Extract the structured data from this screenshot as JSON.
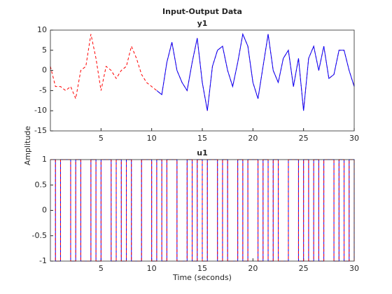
{
  "chart_data": [
    {
      "type": "line",
      "title": "Input-Output Data",
      "subtitle": "y1",
      "y_label": "Amplitude",
      "x": [
        0,
        0.5,
        1,
        1.5,
        2,
        2.5,
        3,
        3.5,
        4,
        4.5,
        5,
        5.5,
        6,
        6.5,
        7,
        7.5,
        8,
        8.5,
        9,
        9.5,
        10,
        10.5,
        11,
        11.5,
        12,
        12.5,
        13,
        13.5,
        14,
        14.5,
        15,
        15.5,
        16,
        16.5,
        17,
        17.5,
        18,
        18.5,
        19,
        19.5,
        20,
        20.5,
        21,
        21.5,
        22,
        22.5,
        23,
        23.5,
        24,
        24.5,
        25,
        25.5,
        26,
        26.5,
        27,
        27.5,
        28,
        28.5,
        29,
        29.5,
        30
      ],
      "series": [
        {
          "color": "#ff0000",
          "dash": true,
          "values": [
            1,
            -4,
            -4,
            -5,
            -4,
            -7,
            0,
            1,
            9,
            3,
            -5,
            1,
            0,
            -2,
            0,
            1,
            6,
            3,
            -1,
            -3,
            -4,
            -5,
            -6,
            2,
            7,
            0,
            -3,
            -5,
            2,
            8,
            -3,
            -10,
            1,
            5,
            6,
            0,
            -4,
            2,
            9,
            6,
            -3,
            -7,
            1,
            9,
            0,
            -3,
            3,
            5,
            -4,
            3,
            -10,
            3,
            6,
            0,
            6,
            -2,
            -1,
            5,
            5,
            0,
            -4
          ]
        },
        {
          "color": "#0000ff",
          "dash": false,
          "values": [
            null,
            null,
            null,
            null,
            null,
            null,
            null,
            null,
            null,
            null,
            null,
            null,
            null,
            null,
            null,
            null,
            null,
            null,
            null,
            null,
            null,
            -5,
            -6,
            2,
            7,
            0,
            -3,
            -5,
            2,
            8,
            -3,
            -10,
            1,
            5,
            6,
            0,
            -4,
            2,
            9,
            6,
            -3,
            -7,
            1,
            9,
            0,
            -3,
            3,
            5,
            -4,
            3,
            -10,
            3,
            6,
            0,
            6,
            -2,
            -1,
            5,
            5,
            0,
            -4
          ]
        }
      ],
      "xlim": [
        0,
        30
      ],
      "xticks": [
        5,
        10,
        15,
        20,
        25,
        30
      ],
      "ylim": [
        -15,
        10
      ],
      "yticks": [
        -15,
        -10,
        -5,
        0,
        5,
        10
      ]
    },
    {
      "type": "stairs",
      "subtitle": "u1",
      "x_label": "Time (seconds)",
      "x": [
        0,
        0.5,
        1,
        1.5,
        2,
        2.5,
        3,
        3.5,
        4,
        4.5,
        5,
        5.5,
        6,
        6.5,
        7,
        7.5,
        8,
        8.5,
        9,
        9.5,
        10,
        10.5,
        11,
        11.5,
        12,
        12.5,
        13,
        13.5,
        14,
        14.5,
        15,
        15.5,
        16,
        16.5,
        17,
        17.5,
        18,
        18.5,
        19,
        19.5,
        20,
        20.5,
        21,
        21.5,
        22,
        22.5,
        23,
        23.5,
        24,
        24.5,
        25,
        25.5,
        26,
        26.5,
        27,
        27.5,
        28,
        28.5,
        29,
        29.5,
        30
      ],
      "series": [
        {
          "color": "#0000ff",
          "dash": false,
          "values": [
            1,
            -1,
            1,
            1,
            -1,
            1,
            -1,
            -1,
            1,
            -1,
            1,
            1,
            -1,
            1,
            -1,
            1,
            -1,
            -1,
            1,
            1,
            -1,
            1,
            -1,
            1,
            1,
            -1,
            -1,
            1,
            -1,
            1,
            -1,
            1,
            1,
            -1,
            1,
            -1,
            -1,
            1,
            -1,
            1,
            1,
            -1,
            1,
            -1,
            1,
            -1,
            -1,
            1,
            1,
            -1,
            1,
            -1,
            1,
            -1,
            1,
            1,
            -1,
            1,
            -1,
            1,
            -1
          ]
        },
        {
          "color": "#ff0000",
          "dash": true,
          "values": [
            1,
            -1,
            1,
            1,
            -1,
            1,
            -1,
            -1,
            1,
            -1,
            1,
            1,
            -1,
            1,
            -1,
            1,
            -1,
            -1,
            1,
            1,
            -1,
            1,
            -1,
            1,
            1,
            -1,
            -1,
            1,
            -1,
            1,
            -1,
            1,
            1,
            -1,
            1,
            -1,
            -1,
            1,
            -1,
            1,
            1,
            -1,
            1,
            -1,
            1,
            -1,
            -1,
            1,
            1,
            -1,
            1,
            -1,
            1,
            -1,
            1,
            1,
            -1,
            1,
            -1,
            1,
            -1
          ]
        }
      ],
      "xlim": [
        0,
        30
      ],
      "xticks": [
        5,
        10,
        15,
        20,
        25,
        30
      ],
      "ylim": [
        -1,
        1
      ],
      "yticks": [
        -1,
        -0.5,
        0,
        0.5,
        1
      ]
    }
  ]
}
